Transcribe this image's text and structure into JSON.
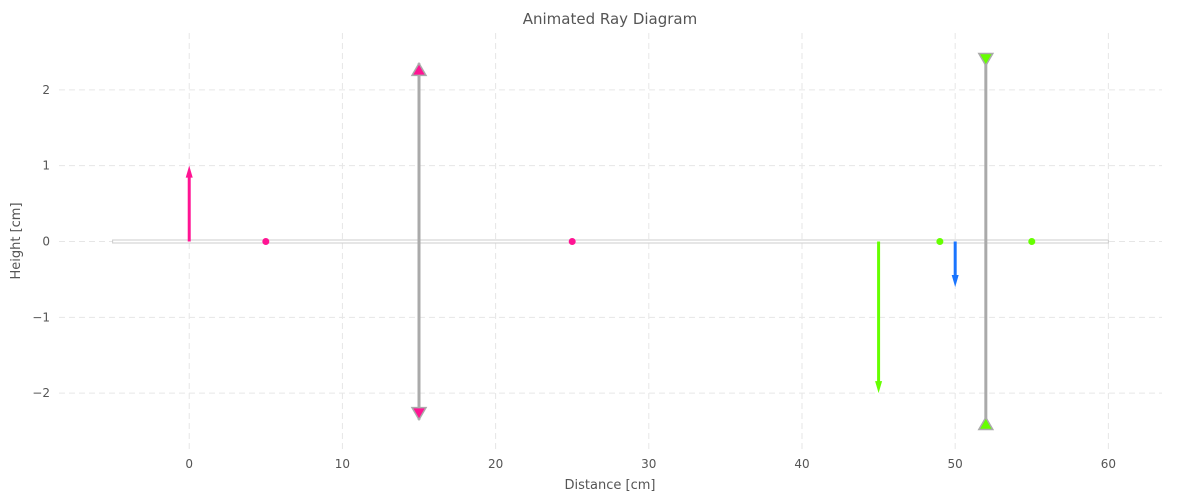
{
  "chart_data": {
    "type": "scatter",
    "title": "Animated Ray Diagram",
    "xlabel": "Distance [cm]",
    "ylabel": "Height [cm]",
    "xlim": [
      -8.5,
      63.5
    ],
    "ylim": [
      -2.75,
      2.75
    ],
    "xticks": [
      0,
      10,
      20,
      30,
      40,
      50,
      60
    ],
    "yticks": [
      2,
      1,
      0,
      -1,
      -2
    ],
    "xtick_labels": [
      "0",
      "10",
      "20",
      "30",
      "40",
      "50",
      "60"
    ],
    "ytick_labels": [
      "2",
      "1",
      "0",
      "−1",
      "−2"
    ],
    "grid": true,
    "optical_axis": {
      "x_start": -5,
      "x_end": 60,
      "y": 0,
      "color": "#cccccc"
    },
    "lenses": [
      {
        "name": "lens-1",
        "x": 15,
        "y_half_height": 2.35,
        "type": "converging",
        "color": "#aaaaaa",
        "marker_color": "#ff1493"
      },
      {
        "name": "lens-2",
        "x": 52,
        "y_half_height": 2.4,
        "type": "diverging",
        "color": "#aaaaaa",
        "marker_color": "#66ff00"
      }
    ],
    "arrows": [
      {
        "name": "object-arrow",
        "x": 0,
        "y_from": 0,
        "y_to": 1,
        "color": "#ff1493"
      },
      {
        "name": "intermediate-image-arrow",
        "x": 45,
        "y_from": 0,
        "y_to": -2,
        "color": "#66ff00"
      },
      {
        "name": "final-image-arrow",
        "x": 50,
        "y_from": 0,
        "y_to": -0.6,
        "color": "#1a75ff"
      }
    ],
    "focal_points": [
      {
        "x": 5,
        "y": 0,
        "color": "#ff1493"
      },
      {
        "x": 25,
        "y": 0,
        "color": "#ff1493"
      },
      {
        "x": 49,
        "y": 0,
        "color": "#66ff00"
      },
      {
        "x": 55,
        "y": 0,
        "color": "#66ff00"
      }
    ]
  }
}
